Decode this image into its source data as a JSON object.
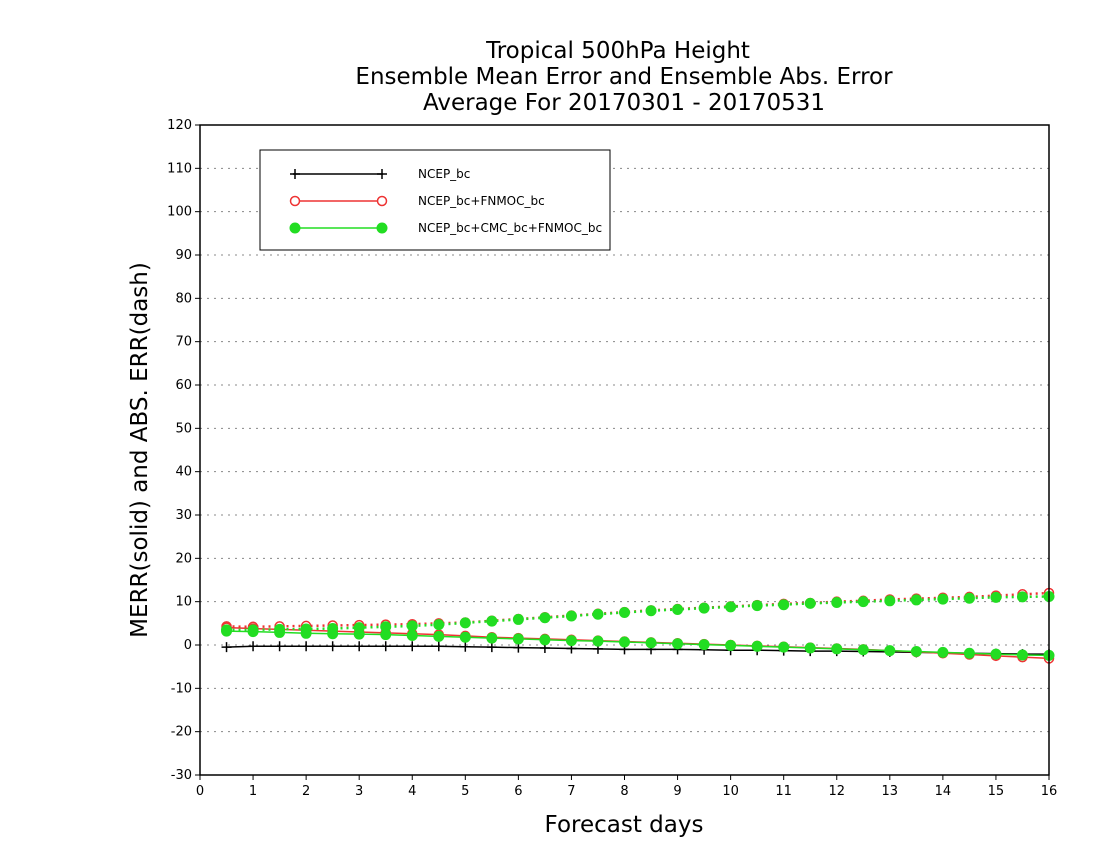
{
  "chart_data": {
    "type": "line",
    "title_lines": [
      "Tropical 500hPa Height",
      "Ensemble Mean Error and Ensemble Abs. Error",
      "Average For 20170301 - 20170531"
    ],
    "xlabel": "Forecast days",
    "ylabel": "MERR(solid) and ABS. ERR(dash)",
    "xlim": [
      0,
      16
    ],
    "ylim": [
      -30,
      120
    ],
    "xticks": [
      0,
      1,
      2,
      3,
      4,
      5,
      6,
      7,
      8,
      9,
      10,
      11,
      12,
      13,
      14,
      15,
      16
    ],
    "yticks": [
      -30,
      -20,
      -10,
      0,
      10,
      20,
      30,
      40,
      50,
      60,
      70,
      80,
      90,
      100,
      110,
      120
    ],
    "grid": true,
    "legend_position": "top-left",
    "x": [
      0.5,
      1,
      1.5,
      2,
      2.5,
      3,
      3.5,
      4,
      4.5,
      5,
      5.5,
      6,
      6.5,
      7,
      7.5,
      8,
      8.5,
      9,
      9.5,
      10,
      10.5,
      11,
      11.5,
      12,
      12.5,
      13,
      13.5,
      14,
      14.5,
      15,
      15.5,
      16
    ],
    "series": [
      {
        "name": "NCEP_bc",
        "color": "#000000",
        "marker": "plus",
        "merr": [
          -0.5,
          -0.3,
          -0.3,
          -0.3,
          -0.3,
          -0.3,
          -0.3,
          -0.3,
          -0.3,
          -0.4,
          -0.5,
          -0.6,
          -0.7,
          -0.8,
          -0.9,
          -1.0,
          -1.0,
          -1.0,
          -1.1,
          -1.2,
          -1.2,
          -1.3,
          -1.4,
          -1.4,
          -1.5,
          -1.6,
          -1.7,
          -1.8,
          -1.9,
          -2.0,
          -2.1,
          -2.1
        ],
        "abs_err": null
      },
      {
        "name": "NCEP_bc+FNMOC_bc",
        "color": "#ee3333",
        "marker": "open-circle",
        "merr": [
          4.0,
          3.8,
          3.6,
          3.4,
          3.2,
          3.0,
          2.8,
          2.6,
          2.4,
          2.1,
          1.8,
          1.6,
          1.4,
          1.2,
          1.0,
          0.8,
          0.6,
          0.4,
          0.2,
          0.0,
          -0.2,
          -0.4,
          -0.6,
          -0.8,
          -1.0,
          -1.3,
          -1.6,
          -1.9,
          -2.2,
          -2.5,
          -2.8,
          -3.1
        ],
        "abs_err": [
          4.3,
          4.2,
          4.3,
          4.4,
          4.5,
          4.6,
          4.7,
          4.8,
          5.0,
          5.2,
          5.6,
          6.0,
          6.4,
          6.8,
          7.2,
          7.6,
          8.0,
          8.3,
          8.6,
          8.9,
          9.2,
          9.5,
          9.7,
          10.0,
          10.2,
          10.5,
          10.7,
          10.9,
          11.1,
          11.4,
          11.7,
          12.0
        ]
      },
      {
        "name": "NCEP_bc+CMC_bc+FNMOC_bc",
        "color": "#22dd22",
        "marker": "filled-circle",
        "merr": [
          3.2,
          3.1,
          2.9,
          2.7,
          2.6,
          2.5,
          2.4,
          2.2,
          2.0,
          1.8,
          1.6,
          1.4,
          1.2,
          1.0,
          0.9,
          0.7,
          0.5,
          0.3,
          0.1,
          -0.1,
          -0.3,
          -0.5,
          -0.7,
          -0.9,
          -1.1,
          -1.3,
          -1.5,
          -1.7,
          -1.9,
          -2.1,
          -2.3,
          -2.4
        ],
        "abs_err": [
          3.5,
          3.5,
          3.6,
          3.7,
          3.8,
          4.0,
          4.2,
          4.4,
          4.7,
          5.1,
          5.5,
          5.9,
          6.3,
          6.7,
          7.1,
          7.5,
          7.9,
          8.2,
          8.5,
          8.8,
          9.1,
          9.3,
          9.6,
          9.8,
          10.0,
          10.2,
          10.4,
          10.6,
          10.8,
          11.0,
          11.1,
          11.2
        ]
      }
    ]
  }
}
